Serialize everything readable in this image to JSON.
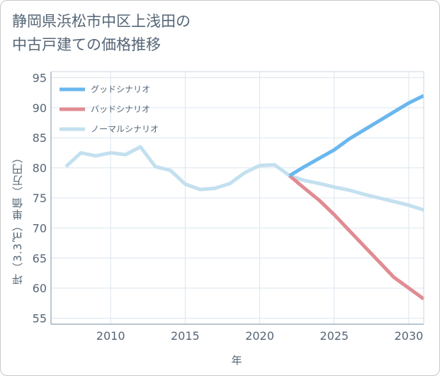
{
  "page": {
    "title": "静岡県浜松市中区上浅田の\n中古戸建ての価格推移"
  },
  "chart_data": {
    "type": "line",
    "title": "静岡県浜松市中区上浅田の中古戸建ての価格推移",
    "xlabel": "年",
    "ylabel": "坪（3.3㎡）単価（万円）",
    "xlim": [
      2006.0,
      2031
    ],
    "ylim": [
      54,
      96
    ],
    "xticks": [
      2010,
      2015,
      2020,
      2025,
      2030
    ],
    "yticks": [
      55,
      60,
      65,
      70,
      75,
      80,
      85,
      90,
      95
    ],
    "grid": true,
    "legend_position": "top-left",
    "series": [
      {
        "name": "グッドシナリオ",
        "color": "#6ab7ee",
        "x": [
          2022,
          2023,
          2024,
          2025,
          2026,
          2027,
          2028,
          2029,
          2030,
          2031
        ],
        "y": [
          78.7,
          80.2,
          81.6,
          83.0,
          84.8,
          86.3,
          87.8,
          89.3,
          90.8,
          92.0
        ]
      },
      {
        "name": "バッドシナリオ",
        "color": "#e08b92",
        "x": [
          2022,
          2023,
          2024,
          2025,
          2026,
          2027,
          2028,
          2029,
          2030,
          2031
        ],
        "y": [
          78.7,
          76.6,
          74.6,
          72.2,
          69.6,
          67.0,
          64.4,
          61.8,
          60.0,
          58.2
        ]
      },
      {
        "name": "ノーマルシナリオ",
        "color": "#c3e0ef",
        "x": [
          2007,
          2008,
          2009,
          2010,
          2011,
          2012,
          2013,
          2014,
          2015,
          2016,
          2017,
          2018,
          2019,
          2020,
          2021,
          2022,
          2023,
          2024,
          2025,
          2026,
          2027,
          2028,
          2029,
          2030,
          2031
        ],
        "y": [
          80.2,
          82.5,
          82.0,
          82.5,
          82.2,
          83.5,
          80.2,
          79.6,
          77.3,
          76.4,
          76.6,
          77.4,
          79.2,
          80.4,
          80.5,
          78.7,
          77.9,
          77.4,
          76.8,
          76.3,
          75.6,
          75.0,
          74.4,
          73.8,
          73.0
        ]
      }
    ]
  }
}
